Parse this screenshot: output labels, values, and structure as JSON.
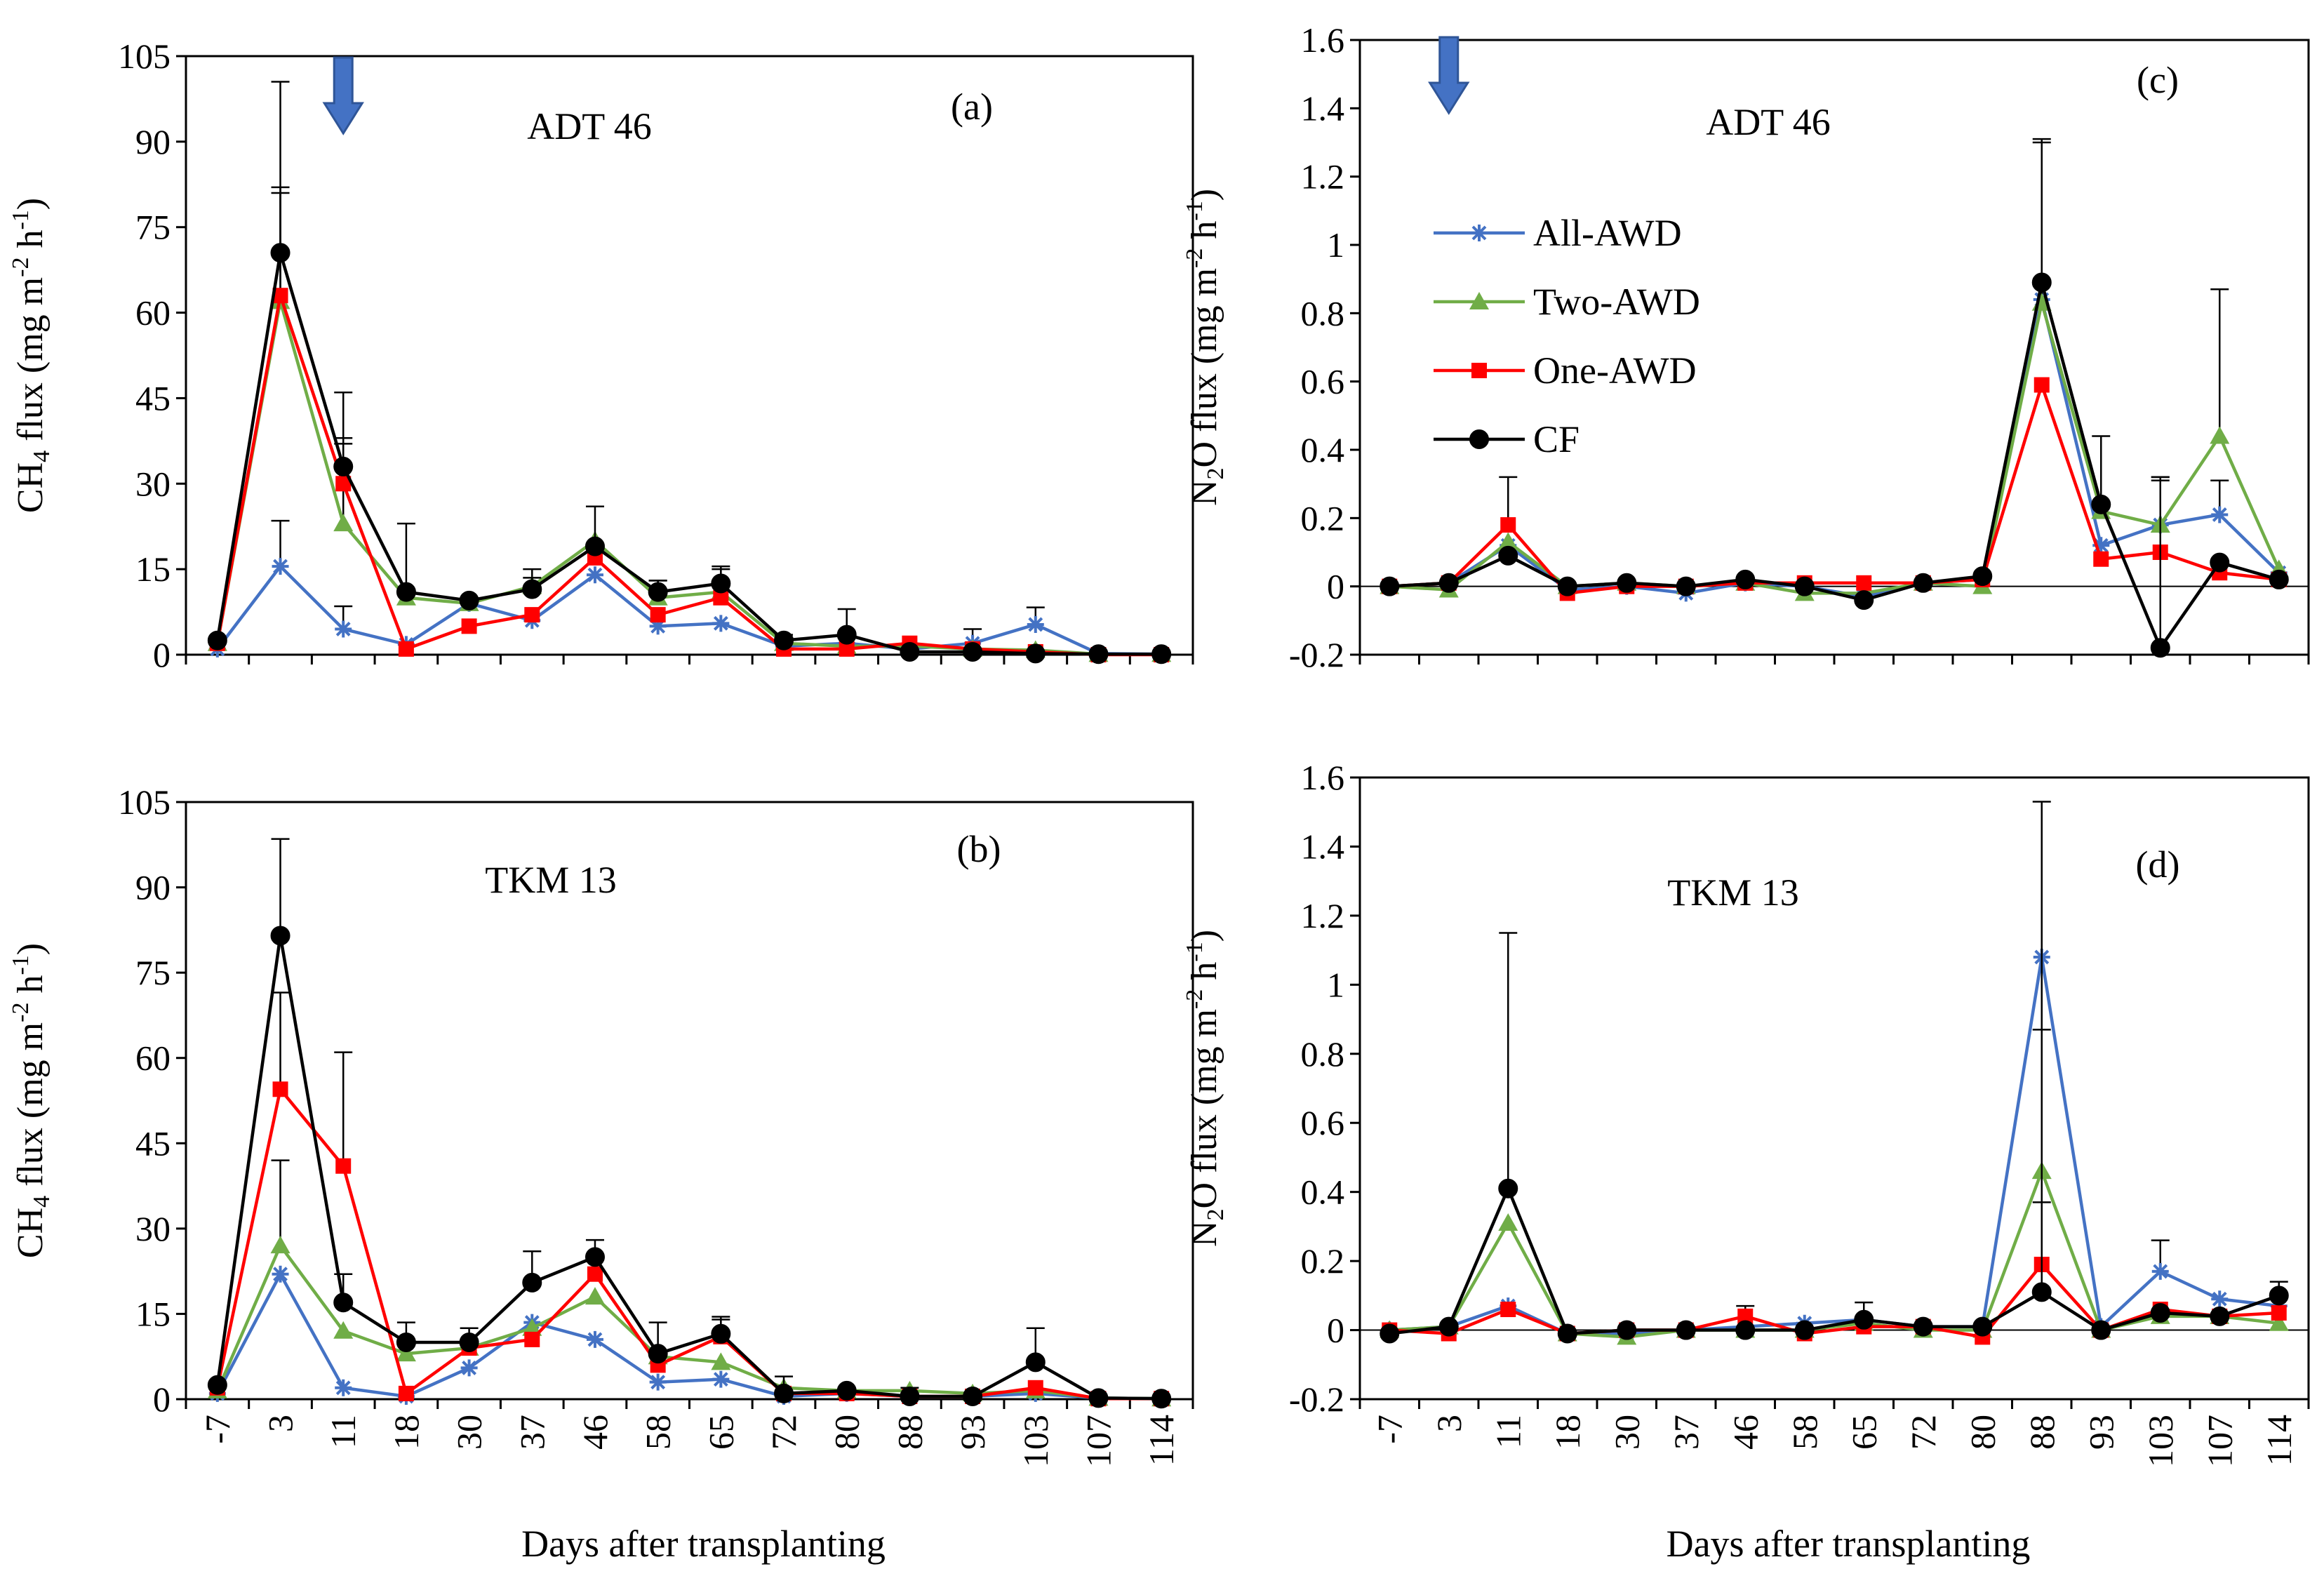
{
  "figure": {
    "x_axis_title": "Days after transplanting",
    "legend_entries": [
      {
        "name": "All-AWD",
        "color": "#4472C4",
        "marker": "asterisk"
      },
      {
        "name": "Two-AWD",
        "color": "#70AD47",
        "marker": "triangle"
      },
      {
        "name": "One-AWD",
        "color": "#FF0000",
        "marker": "square"
      },
      {
        "name": "CF",
        "color": "#000000",
        "marker": "circle"
      }
    ]
  },
  "chart_data": [
    {
      "id": "a",
      "type": "line",
      "panel_label": "(a)",
      "title": "ADT 46",
      "ylabel": {
        "base": "CH",
        "sub": "4",
        "rest": " flux (mg m",
        "sup1": "-2",
        "mid": " h",
        "sup2": "-1",
        "end": ")"
      },
      "xlabel": "",
      "show_x_tick_labels": false,
      "show_arrow": true,
      "arrow_category": "11",
      "ylim": [
        0,
        105
      ],
      "yticks": [
        0,
        15,
        30,
        45,
        60,
        75,
        90,
        105
      ],
      "ytick_labels": [
        "0",
        "15",
        "30",
        "45",
        "60",
        "75",
        "90",
        "105"
      ],
      "categories": [
        "-7",
        "3",
        "11",
        "18",
        "30",
        "37",
        "46",
        "58",
        "65",
        "72",
        "80",
        "88",
        "93",
        "103",
        "107",
        "114"
      ],
      "series": [
        {
          "name": "All-AWD",
          "values": [
            1,
            15.5,
            4.5,
            1.8,
            9,
            6,
            14,
            5,
            5.5,
            1.5,
            2,
            1,
            2,
            5.3,
            0.2,
            0.1
          ],
          "err": [
            0,
            8,
            4,
            0,
            0,
            0,
            0,
            0,
            0,
            0,
            0,
            0,
            2.5,
            3,
            0,
            0
          ]
        },
        {
          "name": "Two-AWD",
          "values": [
            2,
            62,
            23,
            10,
            9,
            12,
            20,
            10,
            11,
            2,
            1.5,
            1.5,
            1,
            0.8,
            0.1,
            0.1
          ],
          "err": [
            0,
            20,
            14,
            0,
            0,
            3,
            0,
            3,
            4,
            0,
            0,
            0,
            0,
            0,
            0,
            0
          ]
        },
        {
          "name": "One-AWD",
          "values": [
            2,
            63,
            30,
            1,
            5,
            7,
            17,
            7,
            10,
            1,
            1,
            2,
            1,
            0.5,
            0,
            0
          ],
          "err": [
            0,
            18,
            8,
            0,
            0,
            0,
            0,
            0,
            0,
            0,
            0,
            0,
            0,
            0,
            0,
            0
          ]
        },
        {
          "name": "CF",
          "values": [
            2.5,
            70.5,
            33,
            11,
            9.5,
            11.5,
            19,
            11,
            12.5,
            2.5,
            3.5,
            0.5,
            0.5,
            0.2,
            0.1,
            0.1
          ],
          "err": [
            0,
            30,
            13,
            12,
            0,
            2,
            7,
            2,
            3,
            1,
            4.5,
            0,
            0,
            0,
            0,
            0
          ]
        }
      ]
    },
    {
      "id": "b",
      "type": "line",
      "panel_label": "(b)",
      "title": "TKM 13",
      "ylabel": {
        "base": "CH",
        "sub": "4",
        "rest": " flux (mg m",
        "sup1": "-2",
        "mid": " h",
        "sup2": "-1",
        "end": ")"
      },
      "xlabel": "Days after transplanting",
      "show_x_tick_labels": true,
      "show_arrow": false,
      "ylim": [
        0,
        105
      ],
      "yticks": [
        0,
        15,
        30,
        45,
        60,
        75,
        90,
        105
      ],
      "ytick_labels": [
        "0",
        "15",
        "30",
        "45",
        "60",
        "75",
        "90",
        "105"
      ],
      "categories": [
        "-7",
        "3",
        "11",
        "18",
        "30",
        "37",
        "46",
        "58",
        "65",
        "72",
        "80",
        "88",
        "93",
        "103",
        "107",
        "114"
      ],
      "series": [
        {
          "name": "All-AWD",
          "values": [
            1,
            22,
            2,
            0.5,
            5.5,
            13.5,
            10.5,
            3,
            3.5,
            0.5,
            1,
            0.5,
            0.5,
            1,
            0.2,
            0.1
          ],
          "err": [
            0,
            0,
            0,
            0,
            0,
            0,
            0,
            0,
            0,
            0,
            0,
            0,
            0,
            0,
            0,
            0
          ]
        },
        {
          "name": "Two-AWD",
          "values": [
            1.5,
            27,
            12,
            8,
            9,
            12.5,
            18,
            7.5,
            6.5,
            2,
            1.5,
            1.5,
            1,
            1.5,
            0.2,
            0.1
          ],
          "err": [
            0,
            15,
            0,
            0,
            0,
            0,
            0,
            0,
            0,
            0,
            0,
            0,
            0,
            0,
            0,
            0
          ]
        },
        {
          "name": "One-AWD",
          "values": [
            2,
            54.5,
            41,
            1,
            9,
            10.5,
            22,
            6,
            11,
            1,
            1,
            0.5,
            0.5,
            2,
            0.1,
            0.1
          ],
          "err": [
            0,
            17,
            20,
            0,
            0,
            0,
            0,
            0,
            3.5,
            0,
            0,
            0,
            0,
            0,
            0,
            0
          ]
        },
        {
          "name": "CF",
          "values": [
            2.5,
            81.5,
            17,
            10,
            10,
            20.5,
            25,
            8,
            11.5,
            1,
            1.5,
            0.5,
            0.5,
            6.5,
            0.2,
            0.1
          ],
          "err": [
            0,
            17,
            5,
            3.5,
            2.5,
            5.5,
            3,
            5.5,
            2.5,
            3,
            0,
            1.5,
            0,
            6,
            0,
            0
          ]
        }
      ]
    },
    {
      "id": "c",
      "type": "line",
      "panel_label": "(c)",
      "title": "ADT 46",
      "ylabel": {
        "base": "N",
        "sub": "2",
        "rest": "O flux (mg m",
        "sup1": "-2",
        "mid": " h",
        "sup2": "-1",
        "end": ")"
      },
      "xlabel": "",
      "show_x_tick_labels": false,
      "show_arrow": true,
      "arrow_category": "3",
      "show_legend": true,
      "ylim": [
        -0.2,
        1.6
      ],
      "yticks": [
        -0.2,
        0,
        0.2,
        0.4,
        0.6,
        0.8,
        1,
        1.2,
        1.4,
        1.6
      ],
      "ytick_labels": [
        "-0.2",
        "0",
        "0.2",
        "0.4",
        "0.6",
        "0.8",
        "1",
        "1.2",
        "1.4",
        "1.6"
      ],
      "categories": [
        "-7",
        "3",
        "11",
        "18",
        "30",
        "37",
        "46",
        "58",
        "65",
        "72",
        "80",
        "88",
        "93",
        "103",
        "107",
        "114"
      ],
      "series": [
        {
          "name": "All-AWD",
          "values": [
            0,
            0.01,
            0.12,
            -0.01,
            0,
            -0.02,
            0.01,
            0,
            -0.03,
            0.01,
            0.02,
            0.84,
            0.12,
            0.18,
            0.21,
            0.04
          ],
          "err": [
            0,
            0,
            0,
            0,
            0,
            0,
            0,
            0,
            0,
            0,
            0,
            0,
            0,
            0.13,
            0.1,
            0
          ]
        },
        {
          "name": "Two-AWD",
          "values": [
            0,
            -0.01,
            0.13,
            0,
            0.01,
            0,
            0.01,
            -0.02,
            -0.02,
            0.01,
            0,
            0.83,
            0.22,
            0.18,
            0.44,
            0.05
          ],
          "err": [
            0,
            0,
            0,
            0,
            0,
            0,
            0,
            0,
            0,
            0,
            0,
            0.47,
            0,
            0.14,
            0.43,
            0
          ]
        },
        {
          "name": "One-AWD",
          "values": [
            0,
            0.01,
            0.18,
            -0.02,
            0,
            0,
            0.01,
            0.01,
            0.01,
            0.01,
            0.02,
            0.59,
            0.08,
            0.1,
            0.04,
            0.02
          ],
          "err": [
            0,
            0,
            0.14,
            0,
            0,
            0,
            0,
            0,
            0,
            0,
            0,
            0,
            0,
            0,
            0,
            0
          ]
        },
        {
          "name": "CF",
          "values": [
            0,
            0.01,
            0.09,
            0,
            0.01,
            0,
            0.02,
            0,
            -0.04,
            0.01,
            0.03,
            0.89,
            0.24,
            -0.18,
            0.07,
            0.02
          ],
          "err": [
            0,
            0,
            0,
            0,
            0,
            0,
            0,
            0,
            0,
            0,
            0,
            0.42,
            0.2,
            0.5,
            0,
            0
          ]
        }
      ]
    },
    {
      "id": "d",
      "type": "line",
      "panel_label": "(d)",
      "title": "TKM 13",
      "ylabel": {
        "base": "N",
        "sub": "2",
        "rest": "O flux (mg m",
        "sup1": "-2",
        "mid": " h",
        "sup2": "-1",
        "end": ")"
      },
      "xlabel": "Days after transplanting",
      "show_x_tick_labels": true,
      "show_arrow": false,
      "ylim": [
        -0.2,
        1.6
      ],
      "yticks": [
        -0.2,
        0,
        0.2,
        0.4,
        0.6,
        0.8,
        1,
        1.2,
        1.4,
        1.6
      ],
      "ytick_labels": [
        "-0.2",
        "0",
        "0.2",
        "0.4",
        "0.6",
        "0.8",
        "1",
        "1.2",
        "1.4",
        "1.6"
      ],
      "categories": [
        "-7",
        "3",
        "11",
        "18",
        "30",
        "37",
        "46",
        "58",
        "65",
        "72",
        "80",
        "88",
        "93",
        "103",
        "107",
        "114"
      ],
      "series": [
        {
          "name": "All-AWD",
          "values": [
            0,
            0.01,
            0.07,
            -0.01,
            -0.01,
            0,
            0.01,
            0.02,
            0.03,
            0.01,
            0.01,
            1.08,
            0.01,
            0.17,
            0.09,
            0.07
          ],
          "err": [
            0,
            0,
            0,
            0,
            0,
            0,
            0,
            0,
            0,
            0,
            0,
            0,
            0,
            0.09,
            0,
            0
          ]
        },
        {
          "name": "Two-AWD",
          "values": [
            0,
            0.01,
            0.31,
            -0.01,
            -0.02,
            0,
            0,
            0,
            0.02,
            0,
            0,
            0.46,
            0,
            0.04,
            0.04,
            0.02
          ],
          "err": [
            0,
            0,
            0,
            0,
            0,
            0,
            0,
            0,
            0,
            0,
            0,
            0.41,
            0,
            0,
            0,
            0
          ]
        },
        {
          "name": "One-AWD",
          "values": [
            0,
            -0.01,
            0.06,
            -0.01,
            0,
            0,
            0.04,
            -0.01,
            0.01,
            0.01,
            -0.02,
            0.19,
            0,
            0.06,
            0.04,
            0.05
          ],
          "err": [
            0,
            0,
            0,
            0,
            0,
            0,
            0.03,
            0,
            0,
            0,
            0,
            0.18,
            0,
            0,
            0,
            0
          ]
        },
        {
          "name": "CF",
          "values": [
            -0.01,
            0.01,
            0.41,
            -0.01,
            0,
            0,
            0,
            0,
            0.03,
            0.01,
            0.01,
            0.11,
            0,
            0.05,
            0.04,
            0.1
          ],
          "err": [
            0,
            0,
            0.74,
            0,
            0,
            0,
            0,
            0,
            0.05,
            0,
            0,
            1.42,
            0,
            0,
            0,
            0.04
          ]
        }
      ]
    }
  ]
}
